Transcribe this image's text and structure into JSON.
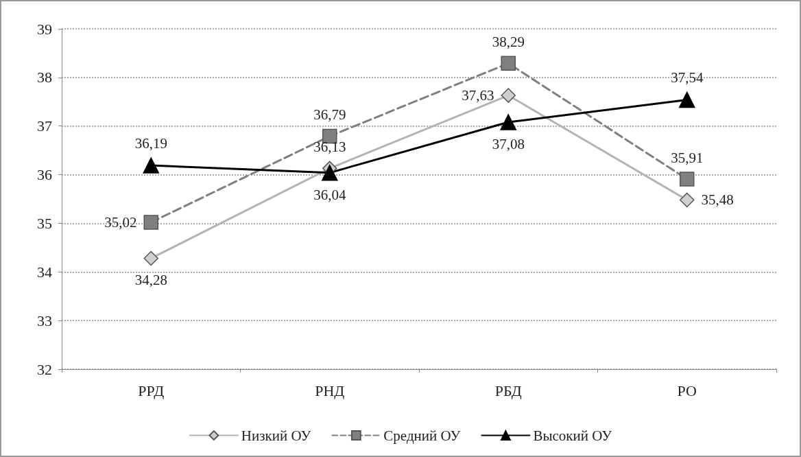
{
  "chart_data": {
    "type": "line",
    "categories": [
      "РРД",
      "РНД",
      "РБД",
      "РО"
    ],
    "series": [
      {
        "name": "Низкий ОУ",
        "color": "#b4b4b4",
        "marker": "diamond",
        "line_style": "solid",
        "values": [
          34.28,
          36.13,
          37.63,
          35.48
        ],
        "value_labels": [
          "34,28",
          "36,13",
          "37,63",
          "35,48"
        ]
      },
      {
        "name": "Средний ОУ",
        "color": "#7f7f7f",
        "marker": "square",
        "line_style": "dashed",
        "values": [
          35.02,
          36.79,
          38.29,
          35.91
        ],
        "value_labels": [
          "35,02",
          "36,79",
          "38,29",
          "35,91"
        ]
      },
      {
        "name": "Высокий ОУ",
        "color": "#000000",
        "marker": "triangle",
        "line_style": "solid",
        "values": [
          36.19,
          36.04,
          37.08,
          37.54
        ],
        "value_labels": [
          "36,19",
          "36,04",
          "37,08",
          "37,54"
        ]
      }
    ],
    "ylim": [
      32,
      39
    ],
    "yticks": [
      32,
      33,
      34,
      35,
      36,
      37,
      38,
      39
    ],
    "grid": "y",
    "legend": "bottom"
  }
}
